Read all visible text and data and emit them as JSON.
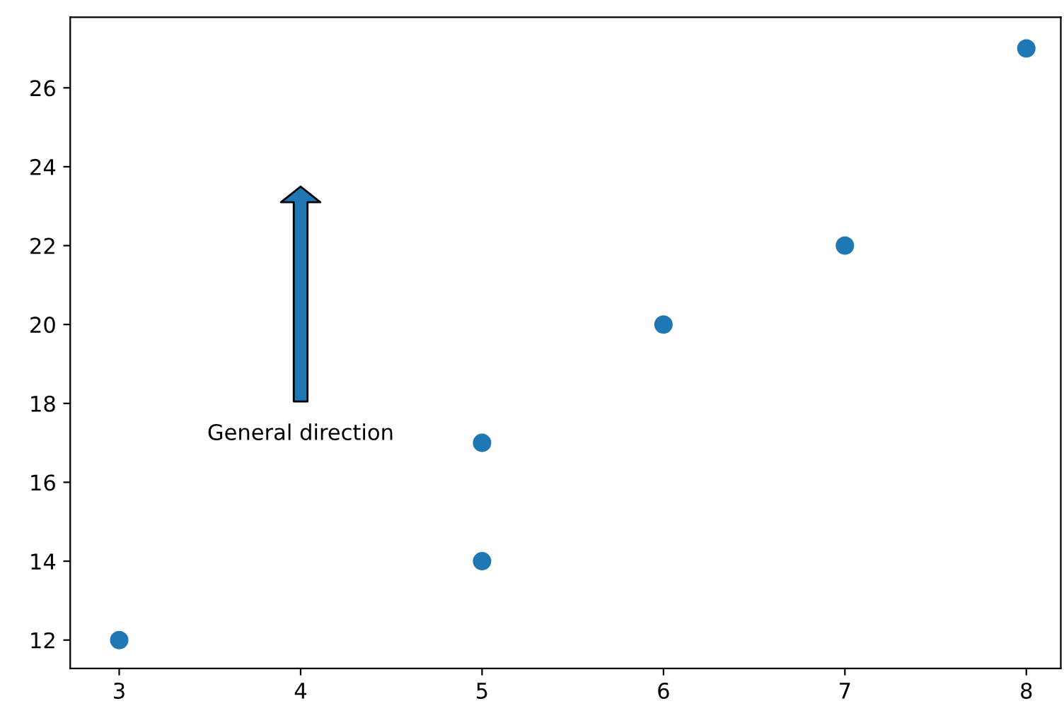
{
  "chart_data": {
    "type": "scatter",
    "x": [
      3,
      5,
      5,
      6,
      7,
      8
    ],
    "values": [
      12,
      14,
      17,
      20,
      22,
      27
    ],
    "color": "#1f77b4",
    "marker": "circle",
    "grid": false,
    "xlim": [
      2.73,
      8.19
    ],
    "xticks": [
      3,
      4,
      5,
      6,
      7,
      8
    ],
    "ylim": [
      11.28,
      27.79
    ],
    "yticks": [
      12,
      14,
      16,
      18,
      20,
      22,
      24,
      26
    ],
    "annotations": [
      "General direction"
    ]
  }
}
